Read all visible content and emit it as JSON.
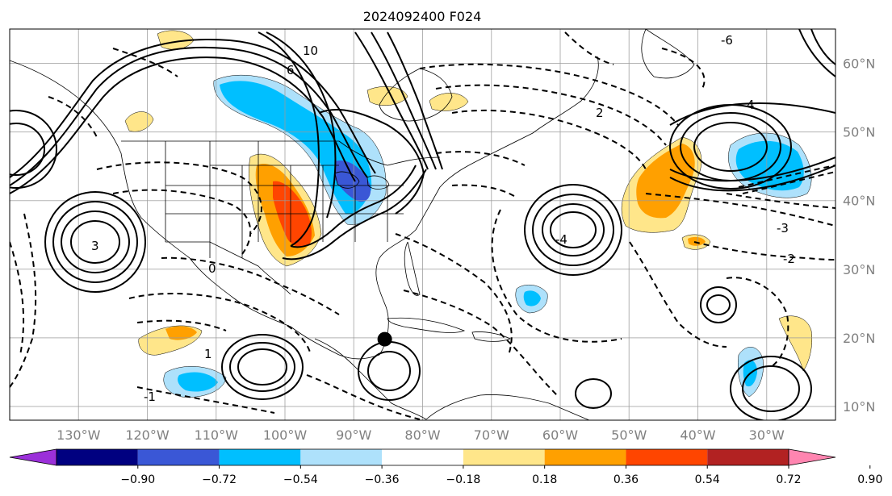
{
  "title": "2024092400 F024",
  "map": {
    "lon_range": [
      -140,
      -20
    ],
    "lat_range": [
      8,
      65
    ],
    "lat_ticks": [
      {
        "value": 10,
        "label": "10°N"
      },
      {
        "value": 20,
        "label": "20°N"
      },
      {
        "value": 30,
        "label": "30°N"
      },
      {
        "value": 40,
        "label": "40°N"
      },
      {
        "value": 50,
        "label": "50°N"
      },
      {
        "value": 60,
        "label": "60°N"
      }
    ],
    "lon_ticks": [
      {
        "value": -130,
        "label": "130°W"
      },
      {
        "value": -120,
        "label": "120°W"
      },
      {
        "value": -110,
        "label": "110°W"
      },
      {
        "value": -100,
        "label": "100°W"
      },
      {
        "value": -90,
        "label": "90°W"
      },
      {
        "value": -80,
        "label": "80°W"
      },
      {
        "value": -70,
        "label": "70°W"
      },
      {
        "value": -60,
        "label": "60°W"
      },
      {
        "value": -50,
        "label": "50°W"
      },
      {
        "value": -40,
        "label": "40°W"
      },
      {
        "value": -30,
        "label": "30°W"
      }
    ],
    "marker": {
      "lon": -85.5,
      "lat": 19.8,
      "color": "#000000"
    },
    "contour_labels": [
      "10",
      "6",
      "4",
      "3",
      "2",
      "1",
      "0",
      "-1",
      "-2",
      "-3",
      "-4",
      "-6"
    ]
  },
  "colorbar": {
    "colors": [
      "#9b30d9",
      "#000080",
      "#3a57d6",
      "#00bfff",
      "#aee1fb",
      "#ffffff",
      "#ffe68a",
      "#ffa000",
      "#ff4500",
      "#b22222",
      "#ff85b0"
    ],
    "labels": [
      "−0.90",
      "−0.72",
      "−0.54",
      "−0.36",
      "−0.18",
      "0.18",
      "0.36",
      "0.54",
      "0.72",
      "0.90"
    ]
  }
}
